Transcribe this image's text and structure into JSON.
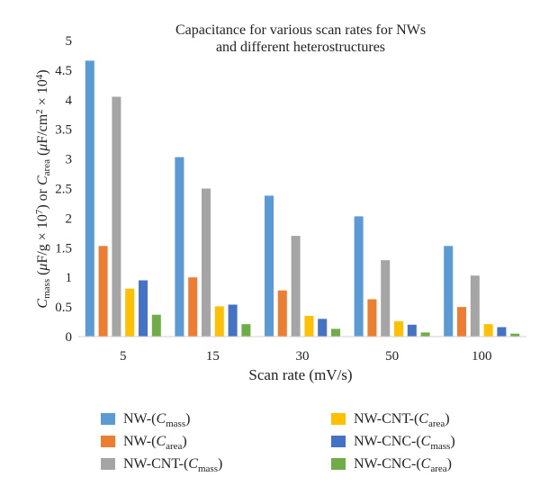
{
  "chart_data": {
    "type": "bar",
    "title_lines": [
      "Capacitance for various scan rates for NWs",
      "and different heterostructures"
    ],
    "xlabel": "Scan rate (mV/s)",
    "ylabel": "C_mass (μF/g × 10^7) or C_area (μF/cm^2 × 10^4)",
    "ylim": [
      0,
      5
    ],
    "yticks": [
      "0",
      "0.5",
      "1",
      "1.5",
      "2",
      "2.5",
      "3",
      "3.5",
      "4",
      "4.5",
      "5"
    ],
    "grid": false,
    "legend_position": "bottom",
    "categories": [
      "5",
      "15",
      "30",
      "50",
      "100"
    ],
    "series": [
      {
        "name": "NW-(C_mass)",
        "label_prefix": "NW-(",
        "var": "C",
        "sub": "mass",
        "color": "#5b9bd5",
        "values": [
          4.66,
          3.03,
          2.38,
          2.03,
          1.53
        ]
      },
      {
        "name": "NW-(C_area)",
        "label_prefix": "NW-(",
        "var": "C",
        "sub": "area",
        "color": "#ed7d31",
        "values": [
          1.53,
          1.0,
          0.78,
          0.63,
          0.5
        ]
      },
      {
        "name": "NW-CNT-(C_mass)",
        "label_prefix": "NW-CNT-(",
        "var": "C",
        "sub": "mass",
        "color": "#a5a5a5",
        "values": [
          4.05,
          2.5,
          1.7,
          1.29,
          1.03
        ]
      },
      {
        "name": "NW-CNT-(C_area)",
        "label_prefix": "NW-CNT-(",
        "var": "C",
        "sub": "area",
        "color": "#ffc000",
        "values": [
          0.81,
          0.51,
          0.35,
          0.26,
          0.21
        ]
      },
      {
        "name": "NW-CNC-(C_mass)",
        "label_prefix": "NW-CNC-(",
        "var": "C",
        "sub": "mass",
        "color": "#4472c4",
        "values": [
          0.95,
          0.54,
          0.3,
          0.2,
          0.16
        ]
      },
      {
        "name": "NW-CNC-(C_area)",
        "label_prefix": "NW-CNC-(",
        "var": "C",
        "sub": "area",
        "color": "#70ad47",
        "values": [
          0.37,
          0.21,
          0.13,
          0.07,
          0.05
        ]
      }
    ]
  }
}
